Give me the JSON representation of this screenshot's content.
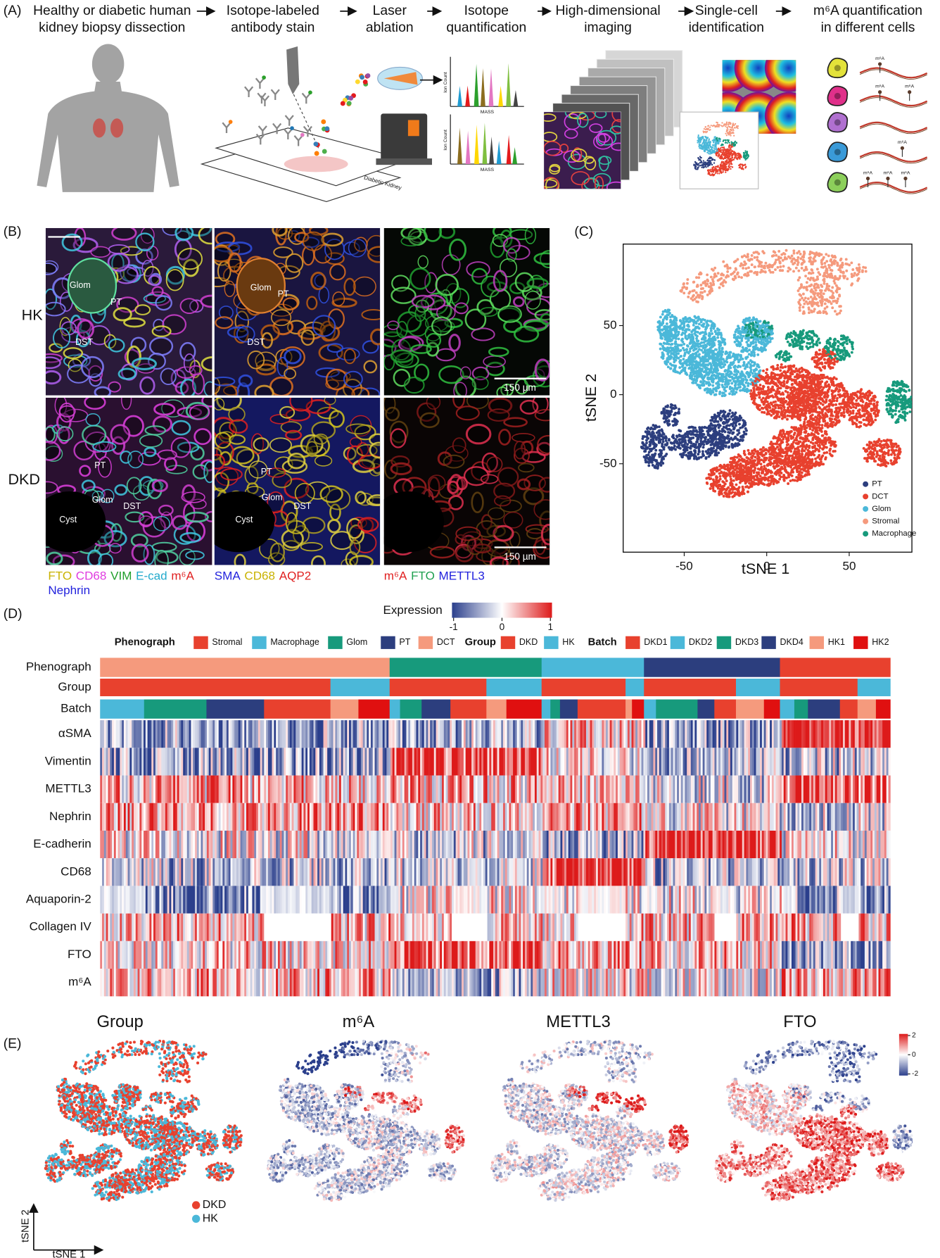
{
  "panel_a": {
    "label": "(A)",
    "steps": [
      [
        "Healthy or diabetic human",
        "kidney biopsy dissection"
      ],
      [
        "Isotope-labeled",
        "antibody stain"
      ],
      [
        "Laser",
        "ablation"
      ],
      [
        "Isotope",
        "quantification"
      ],
      [
        "High-dimensional",
        "imaging"
      ],
      [
        "Single-cell",
        "identification"
      ],
      [
        "m⁶A quantification",
        "in different cells"
      ]
    ],
    "ion_count": "Ion Count",
    "mass": "MASS",
    "slide_label": "Diabetic Kidney",
    "rna_label": "m⁶A"
  },
  "panel_b": {
    "label": "(B)",
    "rows": [
      "HK",
      "DKD"
    ],
    "tissue": [
      [
        [
          "Glom",
          "PT",
          "DST"
        ],
        [
          "Glom",
          "PT",
          "DST"
        ]
      ],
      [
        [
          "PT",
          "Glom",
          "DST",
          "Cyst"
        ],
        [
          "PT",
          "Glom",
          "DST",
          "Cyst"
        ]
      ]
    ],
    "scale_bar": "150 µm",
    "channels": [
      [
        {
          "name": "FTO",
          "color": "#c9b200"
        },
        {
          "name": "CD68",
          "color": "#e03ce0"
        },
        {
          "name": "VIM",
          "color": "#1f9e2a"
        },
        {
          "name": "E-cad",
          "color": "#22aacc"
        },
        {
          "name": "m⁶A",
          "color": "#e02020"
        },
        {
          "name": "Nephrin",
          "color": "#2222dd"
        }
      ],
      [
        {
          "name": "SMA",
          "color": "#2222dd"
        },
        {
          "name": "CD68",
          "color": "#c9b200"
        },
        {
          "name": "AQP2",
          "color": "#e02020"
        }
      ],
      [
        {
          "name": "m⁶A",
          "color": "#e02020"
        },
        {
          "name": "FTO",
          "color": "#1fa050"
        },
        {
          "name": "METTL3",
          "color": "#2222dd"
        }
      ]
    ]
  },
  "panel_c": {
    "label": "(C)",
    "xlabel": "tSNE 1",
    "ylabel": "tSNE 2",
    "xlim": [
      -87,
      88
    ],
    "ylim": [
      -114,
      109
    ],
    "xticks": [
      -50,
      0,
      50
    ],
    "yticks": [
      -50,
      0,
      50
    ],
    "legend": [
      {
        "name": "PT",
        "color": "#2c3e7e"
      },
      {
        "name": "DCT",
        "color": "#e8412e"
      },
      {
        "name": "Glom",
        "color": "#4bb8d9"
      },
      {
        "name": "Stromal",
        "color": "#f59a7d"
      },
      {
        "name": "Macrophage",
        "color": "#179a7c"
      }
    ]
  },
  "panel_d": {
    "label": "(D)",
    "colorbar": {
      "title": "Expression",
      "ticks": [
        -1,
        0,
        1
      ]
    },
    "legends": [
      {
        "title": "Phenograph",
        "items": [
          {
            "name": "Stromal",
            "color": "#e8412e"
          },
          {
            "name": "Macrophage",
            "color": "#4bb8d9"
          },
          {
            "name": "Glom",
            "color": "#179a7c"
          },
          {
            "name": "PT",
            "color": "#2c3e7e"
          },
          {
            "name": "DCT",
            "color": "#f59a7d"
          }
        ]
      },
      {
        "title": "Group",
        "items": [
          {
            "name": "DKD",
            "color": "#e8412e"
          },
          {
            "name": "HK",
            "color": "#4bb8d9"
          }
        ]
      },
      {
        "title": "Batch",
        "items": [
          {
            "name": "DKD1",
            "color": "#e8412e"
          },
          {
            "name": "DKD2",
            "color": "#4bb8d9"
          },
          {
            "name": "DKD3",
            "color": "#179a7c"
          },
          {
            "name": "DKD4",
            "color": "#2c3e7e"
          },
          {
            "name": "HK1",
            "color": "#f59a7d"
          },
          {
            "name": "HK2",
            "color": "#e01010"
          }
        ]
      }
    ],
    "annotation_rows": [
      "Phenograph",
      "Group",
      "Batch"
    ],
    "markers": [
      "αSMA",
      "Vimentin",
      "METTL3",
      "Nephrin",
      "E-cadherin",
      "CD68",
      "Aquaporin-2",
      "Collagen IV",
      "FTO",
      "m⁶A"
    ]
  },
  "panel_e": {
    "label": "(E)",
    "titles": [
      "Group",
      "m⁶A",
      "METTL3",
      "FTO"
    ],
    "legend": [
      {
        "name": "DKD",
        "color": "#e8412e"
      },
      {
        "name": "HK",
        "color": "#4bb8d9"
      }
    ],
    "colorbar_ticks": [
      2,
      0,
      -2
    ],
    "xlabel": "tSNE 1",
    "ylabel": "tSNE 2"
  }
}
